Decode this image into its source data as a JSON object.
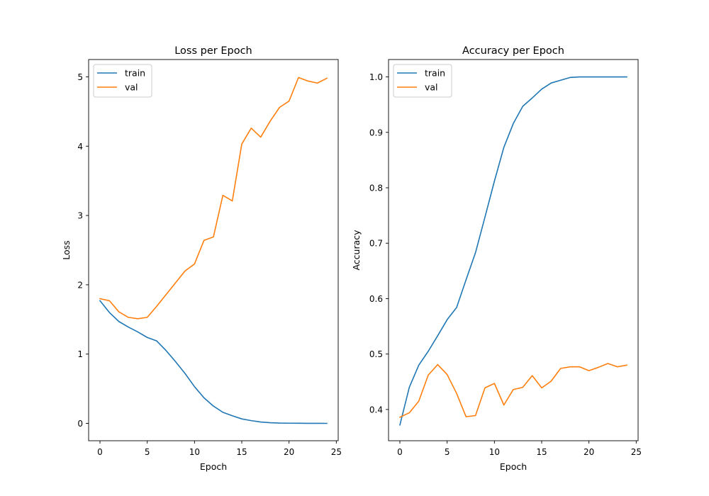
{
  "chart_data": [
    {
      "type": "line",
      "title": "Loss per Epoch",
      "xlabel": "Epoch",
      "ylabel": "Loss",
      "xlim": [
        -1.2,
        25.2
      ],
      "ylim": [
        -0.25,
        5.25
      ],
      "xticks": [
        0,
        5,
        10,
        15,
        20,
        25
      ],
      "yticks": [
        0,
        1,
        2,
        3,
        4,
        5
      ],
      "ytick_labels": [
        "0",
        "1",
        "2",
        "3",
        "4",
        "5"
      ],
      "grid": false,
      "legend": "top-left",
      "series": [
        {
          "name": "train",
          "color": "#1f77b4",
          "x": [
            0,
            1,
            2,
            3,
            4,
            5,
            6,
            7,
            8,
            9,
            10,
            11,
            12,
            13,
            14,
            15,
            16,
            17,
            18,
            19,
            20,
            21,
            22,
            23,
            24
          ],
          "values": [
            1.77,
            1.6,
            1.47,
            1.39,
            1.32,
            1.24,
            1.19,
            1.05,
            0.89,
            0.72,
            0.53,
            0.37,
            0.25,
            0.16,
            0.11,
            0.065,
            0.04,
            0.02,
            0.01,
            0.005,
            0.003,
            0.002,
            0.001,
            0.0008,
            0.0005
          ]
        },
        {
          "name": "val",
          "color": "#ff7f0e",
          "x": [
            0,
            1,
            2,
            3,
            4,
            5,
            6,
            7,
            8,
            9,
            10,
            11,
            12,
            13,
            14,
            15,
            16,
            17,
            18,
            19,
            20,
            21,
            22,
            23,
            24
          ],
          "values": [
            1.8,
            1.77,
            1.61,
            1.53,
            1.51,
            1.53,
            1.69,
            1.86,
            2.03,
            2.2,
            2.3,
            2.64,
            2.69,
            3.29,
            3.21,
            4.03,
            4.26,
            4.13,
            4.36,
            4.56,
            4.65,
            4.99,
            4.94,
            4.91,
            4.98
          ]
        }
      ]
    },
    {
      "type": "line",
      "title": "Accuracy per Epoch",
      "xlabel": "Epoch",
      "ylabel": "Accuracy",
      "xlim": [
        -1.2,
        25.2
      ],
      "ylim": [
        0.3436,
        1.0314
      ],
      "xticks": [
        0,
        5,
        10,
        15,
        20,
        25
      ],
      "yticks": [
        0.4,
        0.5,
        0.6,
        0.7,
        0.8,
        0.9,
        1.0
      ],
      "ytick_labels": [
        "0.4",
        "0.5",
        "0.6",
        "0.7",
        "0.8",
        "0.9",
        "1.0"
      ],
      "grid": false,
      "legend": "top-left",
      "series": [
        {
          "name": "train",
          "color": "#1f77b4",
          "x": [
            0,
            1,
            2,
            3,
            4,
            5,
            6,
            7,
            8,
            9,
            10,
            11,
            12,
            13,
            14,
            15,
            16,
            17,
            18,
            19,
            20,
            21,
            22,
            23,
            24
          ],
          "values": [
            0.372,
            0.44,
            0.48,
            0.505,
            0.533,
            0.562,
            0.584,
            0.634,
            0.683,
            0.747,
            0.812,
            0.873,
            0.916,
            0.947,
            0.962,
            0.978,
            0.989,
            0.994,
            0.999,
            1.0,
            1.0,
            1.0,
            1.0,
            1.0,
            1.0
          ]
        },
        {
          "name": "val",
          "color": "#ff7f0e",
          "x": [
            0,
            1,
            2,
            3,
            4,
            5,
            6,
            7,
            8,
            9,
            10,
            11,
            12,
            13,
            14,
            15,
            16,
            17,
            18,
            19,
            20,
            21,
            22,
            23,
            24
          ],
          "values": [
            0.386,
            0.394,
            0.415,
            0.462,
            0.481,
            0.463,
            0.429,
            0.387,
            0.389,
            0.439,
            0.447,
            0.408,
            0.436,
            0.44,
            0.461,
            0.439,
            0.451,
            0.474,
            0.477,
            0.477,
            0.47,
            0.476,
            0.483,
            0.477,
            0.48
          ]
        }
      ]
    }
  ]
}
